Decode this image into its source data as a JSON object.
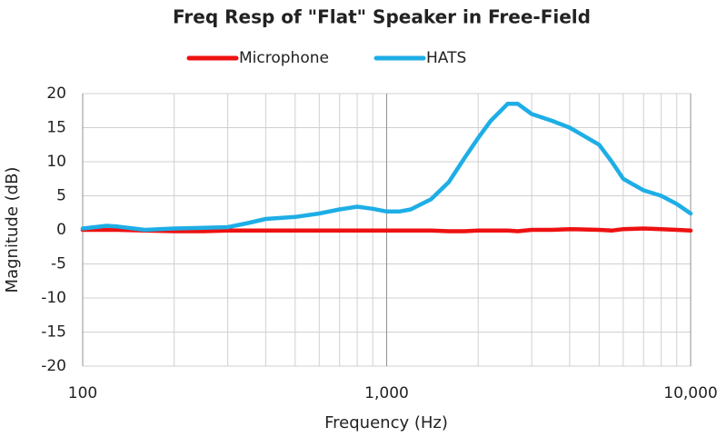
{
  "chart_data": {
    "type": "line",
    "title": "Freq Resp of \"Flat\" Speaker in Free-Field",
    "x_label": "Frequency (Hz)",
    "y_label": "Magnitude (dB)",
    "x_log": true,
    "grid": true,
    "legend": "top",
    "xlim": [
      100,
      10000
    ],
    "xticks": [
      100,
      {
        "value": 1000,
        "label": "1,000"
      },
      {
        "value": 10000,
        "label": "10,000"
      }
    ],
    "x_minor_grid": [
      200,
      300,
      400,
      500,
      600,
      700,
      800,
      900,
      2000,
      3000,
      4000,
      5000,
      6000,
      7000,
      8000,
      9000
    ],
    "ylim": [
      -20,
      20
    ],
    "yticks": [
      20,
      15,
      10,
      5,
      0,
      -5,
      -10,
      -15,
      -20
    ],
    "x": [
      100,
      120,
      130,
      160,
      200,
      250,
      300,
      350,
      400,
      500,
      600,
      700,
      800,
      900,
      1000,
      1100,
      1200,
      1400,
      1600,
      1800,
      2000,
      2200,
      2500,
      2700,
      3000,
      3500,
      4000,
      5000,
      5500,
      6000,
      7000,
      8000,
      9000,
      10000
    ],
    "series": [
      {
        "name": "Microphone",
        "color": "#ee1111",
        "values": [
          0,
          0,
          0,
          -0.1,
          -0.2,
          -0.2,
          -0.1,
          -0.1,
          -0.1,
          -0.1,
          -0.1,
          -0.1,
          -0.1,
          -0.1,
          -0.1,
          -0.1,
          -0.1,
          -0.1,
          -0.2,
          -0.2,
          -0.1,
          -0.1,
          -0.1,
          -0.2,
          0,
          0,
          0.1,
          0,
          -0.1,
          0.1,
          0.2,
          0.1,
          0,
          -0.1
        ]
      },
      {
        "name": "HATS",
        "color": "#1eaee6",
        "values": [
          0.2,
          0.6,
          0.5,
          0,
          0.2,
          0.3,
          0.4,
          1,
          1.6,
          1.9,
          2.4,
          3,
          3.4,
          3.1,
          2.7,
          2.7,
          3,
          4.5,
          7,
          10.5,
          13.5,
          16,
          18.5,
          18.5,
          17,
          16,
          15,
          12.5,
          10,
          7.5,
          5.8,
          5,
          3.8,
          2.4
        ]
      }
    ]
  }
}
